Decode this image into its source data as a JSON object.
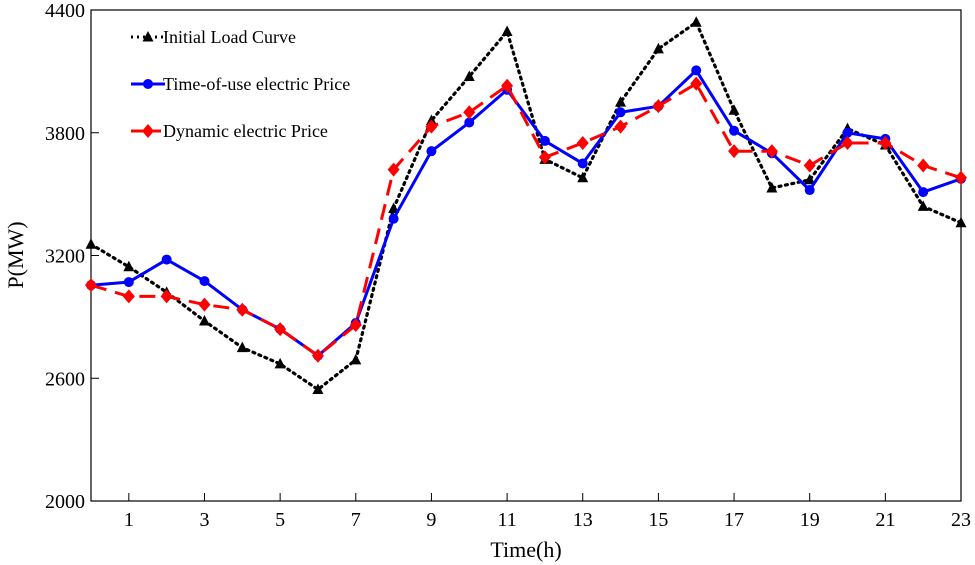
{
  "chart_data": {
    "type": "line",
    "xlabel": "Time(h)",
    "ylabel": "P(MW)",
    "xlim": [
      0,
      23
    ],
    "ylim": [
      2000,
      4400
    ],
    "xticks": [
      1,
      3,
      5,
      7,
      9,
      11,
      13,
      15,
      17,
      19,
      21,
      23
    ],
    "yticks": [
      2000,
      2600,
      3200,
      3800,
      4400
    ],
    "legend_position": "top-left",
    "x": [
      0,
      1,
      2,
      3,
      4,
      5,
      6,
      7,
      8,
      9,
      10,
      11,
      12,
      13,
      14,
      15,
      16,
      17,
      18,
      19,
      20,
      21,
      22,
      23
    ],
    "series": [
      {
        "name": "Initial Load Curve",
        "color": "#000000",
        "style": "dotted",
        "marker": "triangle",
        "values": [
          3255,
          3145,
          3020,
          2880,
          2750,
          2670,
          2545,
          2690,
          3430,
          3860,
          4075,
          4295,
          3670,
          3580,
          3950,
          4210,
          4340,
          3910,
          3530,
          3570,
          3820,
          3740,
          3440,
          3360
        ]
      },
      {
        "name": "Time-of-use electric Price",
        "color": "#0000FF",
        "style": "solid",
        "marker": "circle",
        "values": [
          3055,
          3070,
          3180,
          3075,
          2935,
          2840,
          2710,
          2870,
          3380,
          3710,
          3850,
          4010,
          3760,
          3650,
          3900,
          3930,
          4105,
          3810,
          3700,
          3520,
          3800,
          3770,
          3510,
          3575
        ]
      },
      {
        "name": "Dynamic electric Price",
        "color": "#FF0000",
        "style": "dashed",
        "marker": "diamond",
        "values": [
          3055,
          3000,
          3000,
          2960,
          2935,
          2840,
          2710,
          2860,
          3620,
          3830,
          3900,
          4030,
          3680,
          3750,
          3830,
          3930,
          4040,
          3710,
          3710,
          3640,
          3750,
          3750,
          3640,
          3580
        ]
      }
    ]
  }
}
